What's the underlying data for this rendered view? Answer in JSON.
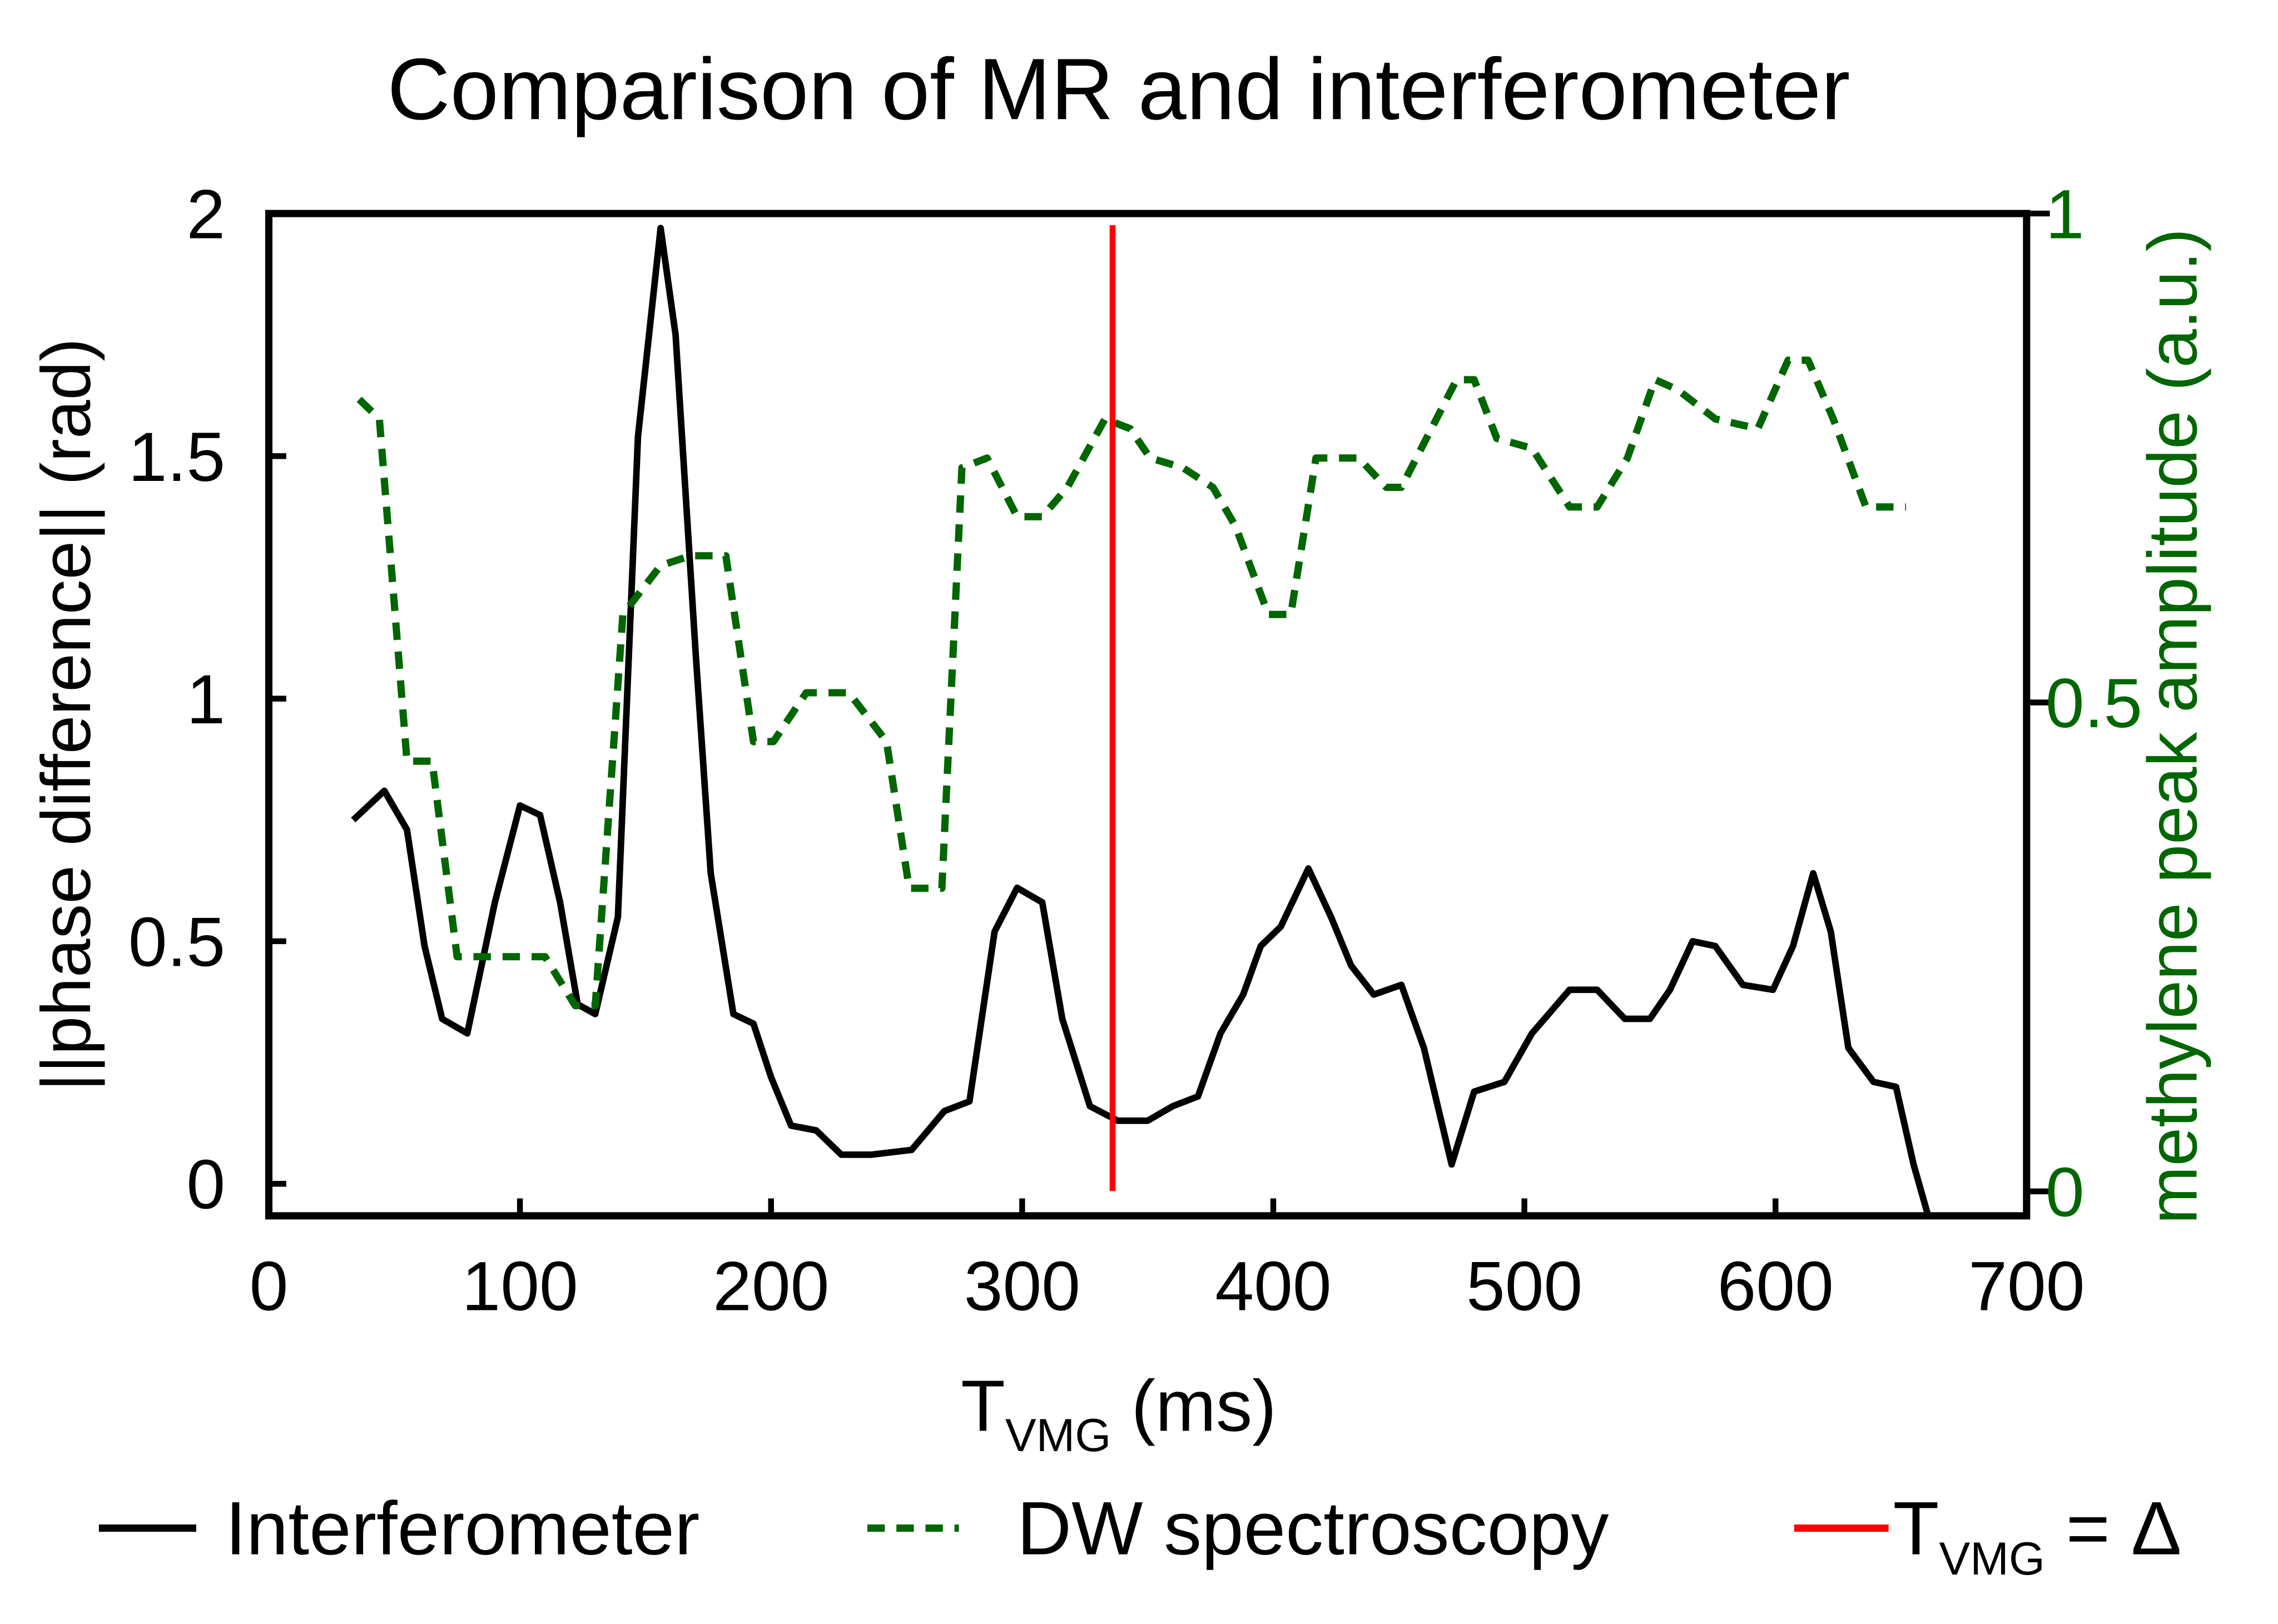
{
  "chart_data": {
    "type": "line",
    "title": "Comparison of MR and interferometer",
    "xlabel": {
      "main": "T",
      "sub": "VMG",
      "rest": " (ms)"
    },
    "ylabel": "||phase difference|| (rad)",
    "y2label": "methylene peak amplitude (a.u.)",
    "xlim": [
      0,
      700
    ],
    "xticks": [
      0,
      100,
      200,
      300,
      400,
      500,
      600,
      700
    ],
    "ylim": [
      -0.066,
      2
    ],
    "yticks": [
      0,
      0.5,
      1,
      1.5,
      2
    ],
    "y2lim": [
      -0.025,
      1
    ],
    "y2ticks": [
      0,
      0.5,
      1
    ],
    "y2color": "#006600",
    "series": [
      {
        "name": "Interferometer",
        "color": "#000000",
        "dash": false,
        "x": [
          33.6,
          46,
          55,
          62,
          69,
          79,
          90,
          100,
          108,
          116,
          123,
          130,
          139,
          147,
          156,
          162,
          170,
          176,
          185,
          193,
          200,
          208,
          218,
          228,
          240,
          256,
          269,
          279,
          289,
          298,
          308,
          316,
          327,
          338,
          350,
          360,
          370,
          379,
          388,
          395,
          403,
          414,
          423,
          431,
          440,
          451,
          460,
          471,
          480,
          492,
          503,
          518,
          529,
          540,
          550,
          558,
          567,
          576,
          587,
          599,
          607,
          615,
          622,
          629,
          639,
          648,
          655,
          661
        ],
        "values": [
          0.75,
          0.81,
          0.73,
          0.49,
          0.34,
          0.31,
          0.58,
          0.78,
          0.76,
          0.58,
          0.37,
          0.35,
          0.55,
          1.54,
          1.97,
          1.75,
          1.09,
          0.64,
          0.35,
          0.33,
          0.22,
          0.12,
          0.11,
          0.06,
          0.06,
          0.07,
          0.15,
          0.17,
          0.52,
          0.61,
          0.58,
          0.34,
          0.16,
          0.13,
          0.13,
          0.16,
          0.18,
          0.31,
          0.39,
          0.49,
          0.53,
          0.65,
          0.55,
          0.45,
          0.39,
          0.41,
          0.28,
          0.04,
          0.19,
          0.21,
          0.31,
          0.4,
          0.4,
          0.34,
          0.34,
          0.4,
          0.5,
          0.49,
          0.41,
          0.4,
          0.49,
          0.64,
          0.52,
          0.28,
          0.21,
          0.2,
          0.04,
          -0.07
        ]
      },
      {
        "name": "DW spectroscopy",
        "color": "#006600",
        "dash": true,
        "axis": "y2",
        "x": [
          36,
          44,
          55,
          65,
          75,
          96,
          110,
          122,
          130,
          141,
          156,
          168,
          182,
          193,
          201,
          214,
          231,
          246,
          255,
          268,
          276,
          286,
          298,
          308,
          318,
          333,
          343,
          351,
          364,
          376,
          385,
          398,
          407,
          417,
          434,
          445,
          451,
          463,
          473,
          480,
          489,
          503,
          518,
          529,
          541,
          552,
          561,
          576,
          593,
          605,
          613,
          623,
          636,
          652
        ],
        "values": [
          0.81,
          0.79,
          0.44,
          0.44,
          0.24,
          0.24,
          0.24,
          0.19,
          0.19,
          0.59,
          0.64,
          0.65,
          0.65,
          0.46,
          0.46,
          0.51,
          0.51,
          0.46,
          0.31,
          0.31,
          0.74,
          0.75,
          0.69,
          0.69,
          0.72,
          0.79,
          0.78,
          0.75,
          0.74,
          0.72,
          0.68,
          0.59,
          0.59,
          0.75,
          0.75,
          0.72,
          0.72,
          0.78,
          0.83,
          0.83,
          0.77,
          0.76,
          0.7,
          0.7,
          0.75,
          0.83,
          0.82,
          0.79,
          0.78,
          0.85,
          0.85,
          0.79,
          0.7,
          0.7
        ]
      }
    ],
    "vline": {
      "x": 336,
      "color": "#ff0000",
      "label": {
        "main": "T",
        "sub": "VMG",
        "rest": " = Δ"
      }
    }
  }
}
